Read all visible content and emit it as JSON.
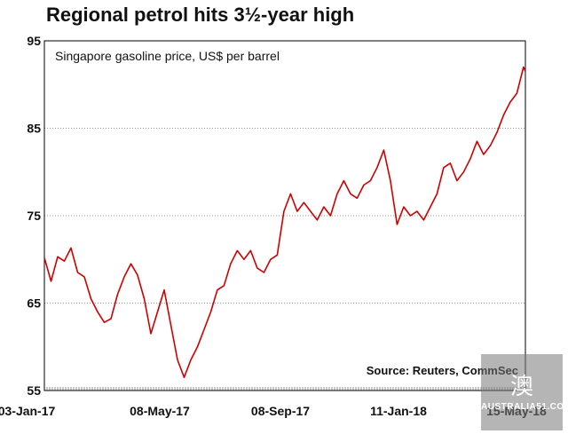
{
  "chart_data": {
    "type": "line",
    "title": "Regional petrol hits 3½-year high",
    "subtitle": "Singapore gasoline price, US$ per barrel",
    "source": "Source: Reuters, CommSec",
    "y_ticks": [
      "95",
      "85",
      "75",
      "65",
      "55"
    ],
    "x_ticks": [
      "03-Jan-17",
      "08-May-17",
      "08-Sep-17",
      "11-Jan-18",
      "15-May-18"
    ],
    "ylim": [
      55,
      95
    ],
    "xlim": [
      "2017-01-03",
      "2018-05-24"
    ],
    "grid": "horizontal dotted",
    "color": "#cc0000",
    "series": [
      {
        "x": [
          "2017-01-03",
          "2017-01-10",
          "2017-01-17",
          "2017-01-24",
          "2017-01-31",
          "2017-02-07",
          "2017-02-14",
          "2017-02-21",
          "2017-02-28",
          "2017-03-07",
          "2017-03-14",
          "2017-03-21",
          "2017-03-28",
          "2017-04-04",
          "2017-04-11",
          "2017-04-18",
          "2017-04-25",
          "2017-05-02",
          "2017-05-09",
          "2017-05-16",
          "2017-05-23",
          "2017-05-30",
          "2017-06-06",
          "2017-06-13",
          "2017-06-20",
          "2017-06-27",
          "2017-07-04",
          "2017-07-11",
          "2017-07-18",
          "2017-07-25",
          "2017-08-01",
          "2017-08-08",
          "2017-08-15",
          "2017-08-22",
          "2017-08-29",
          "2017-09-05",
          "2017-09-12",
          "2017-09-19",
          "2017-09-26",
          "2017-10-03",
          "2017-10-10",
          "2017-10-17",
          "2017-10-24",
          "2017-10-31",
          "2017-11-07",
          "2017-11-14",
          "2017-11-21",
          "2017-11-28",
          "2017-12-05",
          "2017-12-12",
          "2017-12-19",
          "2017-12-26",
          "2018-01-02",
          "2018-01-09",
          "2018-01-16",
          "2018-01-23",
          "2018-01-30",
          "2018-02-06",
          "2018-02-13",
          "2018-02-20",
          "2018-02-27",
          "2018-03-06",
          "2018-03-13",
          "2018-03-20",
          "2018-03-27",
          "2018-04-03",
          "2018-04-10",
          "2018-04-17",
          "2018-04-24",
          "2018-05-01",
          "2018-05-08",
          "2018-05-15",
          "2018-05-22",
          "2018-05-24"
        ],
        "values": [
          70.2,
          67.5,
          70.3,
          69.8,
          71.3,
          68.5,
          68.0,
          65.5,
          64.0,
          62.8,
          63.2,
          66.0,
          68.0,
          69.5,
          68.2,
          65.5,
          61.5,
          64.0,
          66.5,
          62.5,
          58.5,
          56.5,
          58.5,
          60.0,
          62.0,
          64.0,
          66.5,
          67.0,
          69.5,
          71.0,
          70.0,
          71.0,
          69.0,
          68.5,
          70.0,
          70.5,
          75.5,
          77.5,
          75.5,
          76.5,
          75.5,
          74.5,
          76.0,
          75.0,
          77.5,
          79.0,
          77.5,
          77.0,
          78.5,
          79.0,
          80.5,
          82.5,
          79.0,
          74.0,
          76.0,
          75.0,
          75.5,
          74.5,
          76.0,
          77.5,
          80.5,
          81.0,
          79.0,
          80.0,
          81.5,
          83.5,
          82.0,
          83.0,
          84.5,
          86.5,
          88.0,
          89.0,
          92.0,
          91.5
        ]
      }
    ]
  },
  "watermark": {
    "glyph": "澳",
    "text": "AUSTRALIA51.COM"
  }
}
